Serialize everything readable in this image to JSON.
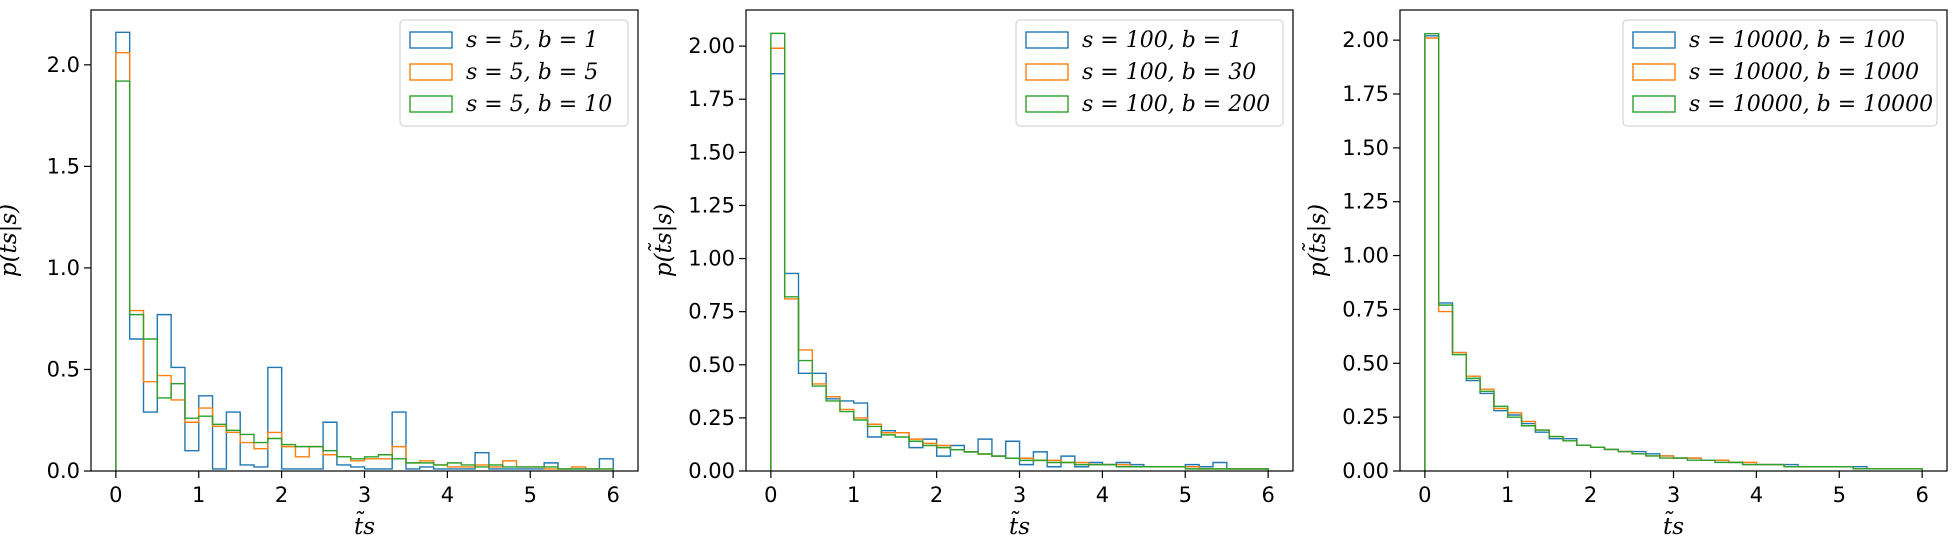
{
  "chart_data": [
    {
      "type": "histogram-step",
      "xlabel": "t̃s",
      "ylabel": "p(t̃s|s)",
      "xlim": [
        -0.3,
        6.3
      ],
      "ylim": [
        0,
        2.27
      ],
      "xticks": [
        "0",
        "1",
        "2",
        "3",
        "4",
        "5",
        "6"
      ],
      "yticks": [
        "0.0",
        "0.5",
        "1.0",
        "1.5",
        "2.0"
      ],
      "legend_position": "upper-right",
      "bin_width": 0.1667,
      "series": [
        {
          "name": "s = 5, b = 1",
          "color": "#1f77b4",
          "values": [
            2.16,
            0.65,
            0.29,
            0.77,
            0.51,
            0.1,
            0.37,
            0.01,
            0.29,
            0.03,
            0.02,
            0.51,
            0.01,
            0.01,
            0.01,
            0.24,
            0.03,
            0.02,
            0.01,
            0.01,
            0.29,
            0.01,
            0.02,
            0.01,
            0.01,
            0.01,
            0.09,
            0.01,
            0.01,
            0.01,
            0.01,
            0.04,
            0.01,
            0.01,
            0.01,
            0.06
          ]
        },
        {
          "name": "s = 5, b = 5",
          "color": "#ff7f0e",
          "values": [
            2.06,
            0.79,
            0.44,
            0.47,
            0.35,
            0.24,
            0.31,
            0.22,
            0.19,
            0.14,
            0.11,
            0.19,
            0.12,
            0.07,
            0.12,
            0.08,
            0.07,
            0.05,
            0.06,
            0.06,
            0.12,
            0.04,
            0.05,
            0.03,
            0.02,
            0.02,
            0.03,
            0.02,
            0.05,
            0.02,
            0.02,
            0.01,
            0.01,
            0.02,
            0.01,
            0.01
          ]
        },
        {
          "name": "s = 5, b = 10",
          "color": "#2ca02c",
          "values": [
            1.92,
            0.77,
            0.65,
            0.36,
            0.43,
            0.26,
            0.27,
            0.23,
            0.2,
            0.18,
            0.14,
            0.16,
            0.13,
            0.12,
            0.12,
            0.1,
            0.07,
            0.06,
            0.07,
            0.08,
            0.06,
            0.04,
            0.04,
            0.03,
            0.04,
            0.03,
            0.02,
            0.03,
            0.02,
            0.02,
            0.02,
            0.02,
            0.01,
            0.01,
            0.01,
            0.01
          ]
        }
      ]
    },
    {
      "type": "histogram-step",
      "xlabel": "t̃s",
      "ylabel": "p(t̃s|s)",
      "xlim": [
        -0.3,
        6.3
      ],
      "ylim": [
        0,
        2.17
      ],
      "xticks": [
        "0",
        "1",
        "2",
        "3",
        "4",
        "5",
        "6"
      ],
      "yticks": [
        "0.00",
        "0.25",
        "0.50",
        "0.75",
        "1.00",
        "1.25",
        "1.50",
        "1.75",
        "2.00"
      ],
      "legend_position": "upper-right",
      "bin_width": 0.1667,
      "series": [
        {
          "name": "s = 100, b = 1",
          "color": "#1f77b4",
          "values": [
            1.87,
            0.93,
            0.46,
            0.46,
            0.34,
            0.33,
            0.32,
            0.16,
            0.19,
            0.18,
            0.11,
            0.15,
            0.07,
            0.12,
            0.09,
            0.15,
            0.07,
            0.14,
            0.03,
            0.09,
            0.02,
            0.07,
            0.02,
            0.04,
            0.03,
            0.04,
            0.03,
            0.02,
            0.02,
            0.02,
            0.03,
            0.02,
            0.04,
            0.01,
            0.01,
            0.01
          ]
        },
        {
          "name": "s = 100, b = 30",
          "color": "#ff7f0e",
          "values": [
            1.99,
            0.81,
            0.57,
            0.41,
            0.35,
            0.29,
            0.25,
            0.22,
            0.18,
            0.18,
            0.15,
            0.13,
            0.12,
            0.1,
            0.09,
            0.08,
            0.07,
            0.06,
            0.06,
            0.05,
            0.05,
            0.04,
            0.04,
            0.03,
            0.03,
            0.03,
            0.02,
            0.02,
            0.02,
            0.02,
            0.02,
            0.01,
            0.01,
            0.01,
            0.01,
            0.01
          ]
        },
        {
          "name": "s = 100, b = 200",
          "color": "#2ca02c",
          "values": [
            2.06,
            0.82,
            0.52,
            0.4,
            0.33,
            0.28,
            0.24,
            0.21,
            0.17,
            0.16,
            0.14,
            0.12,
            0.11,
            0.1,
            0.09,
            0.08,
            0.07,
            0.06,
            0.05,
            0.05,
            0.04,
            0.04,
            0.03,
            0.03,
            0.03,
            0.02,
            0.02,
            0.02,
            0.02,
            0.02,
            0.01,
            0.01,
            0.01,
            0.01,
            0.01,
            0.01
          ]
        }
      ]
    },
    {
      "type": "histogram-step",
      "xlabel": "t̃s",
      "ylabel": "p(t̃s|s)",
      "xlim": [
        -0.3,
        6.3
      ],
      "ylim": [
        0,
        2.14
      ],
      "xticks": [
        "0",
        "1",
        "2",
        "3",
        "4",
        "5",
        "6"
      ],
      "yticks": [
        "0.00",
        "0.25",
        "0.50",
        "0.75",
        "1.00",
        "1.25",
        "1.50",
        "1.75",
        "2.00"
      ],
      "legend_position": "upper-right",
      "bin_width": 0.1667,
      "series": [
        {
          "name": "s = 10000, b = 100",
          "color": "#1f77b4",
          "values": [
            2.02,
            0.78,
            0.55,
            0.42,
            0.36,
            0.28,
            0.26,
            0.22,
            0.18,
            0.15,
            0.15,
            0.12,
            0.11,
            0.1,
            0.09,
            0.09,
            0.08,
            0.07,
            0.06,
            0.06,
            0.05,
            0.05,
            0.04,
            0.03,
            0.03,
            0.03,
            0.03,
            0.02,
            0.02,
            0.02,
            0.02,
            0.02,
            0.01,
            0.01,
            0.01,
            0.01
          ]
        },
        {
          "name": "s = 10000, b = 1000",
          "color": "#ff7f0e",
          "values": [
            2.01,
            0.74,
            0.55,
            0.44,
            0.38,
            0.29,
            0.27,
            0.23,
            0.19,
            0.16,
            0.14,
            0.12,
            0.11,
            0.1,
            0.09,
            0.08,
            0.07,
            0.07,
            0.06,
            0.06,
            0.05,
            0.05,
            0.04,
            0.04,
            0.03,
            0.03,
            0.02,
            0.02,
            0.02,
            0.02,
            0.02,
            0.01,
            0.01,
            0.01,
            0.01,
            0.01
          ]
        },
        {
          "name": "s = 10000, b = 10000",
          "color": "#2ca02c",
          "values": [
            2.03,
            0.77,
            0.54,
            0.43,
            0.37,
            0.3,
            0.25,
            0.21,
            0.19,
            0.16,
            0.14,
            0.12,
            0.11,
            0.1,
            0.09,
            0.08,
            0.07,
            0.06,
            0.06,
            0.05,
            0.05,
            0.04,
            0.04,
            0.03,
            0.03,
            0.03,
            0.02,
            0.02,
            0.02,
            0.02,
            0.02,
            0.01,
            0.01,
            0.01,
            0.01,
            0.01
          ]
        }
      ]
    }
  ]
}
